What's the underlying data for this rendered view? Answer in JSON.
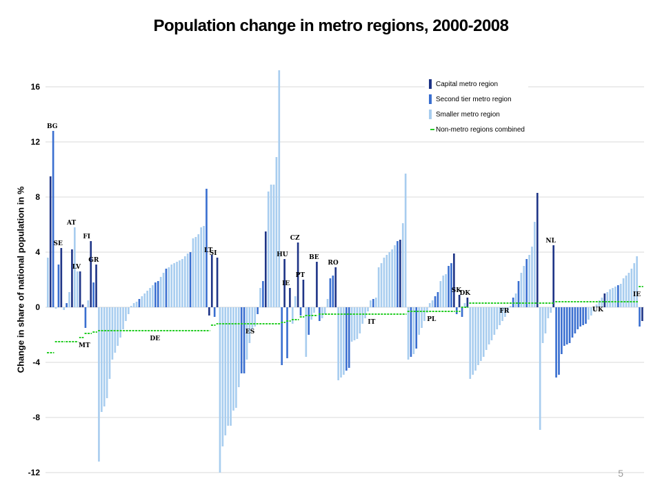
{
  "page": {
    "number": "5"
  },
  "chart_data": {
    "type": "bar",
    "title": "Population change in metro regions, 2000-2008",
    "ylabel": "Change in share of national population in %",
    "xlabel": "",
    "ylim": [
      -12,
      17
    ],
    "yticks": [
      -12,
      -8,
      -4,
      0,
      4,
      8,
      12,
      16
    ],
    "grid": true,
    "legend_position": "top-right",
    "colors": {
      "capital": "#1f3587",
      "second": "#3a6fd0",
      "smaller": "#a8cdef",
      "nonmetro": "#22cc22",
      "grid": "#d9d9d9"
    },
    "legend": [
      {
        "key": "capital",
        "label": "Capital metro region"
      },
      {
        "key": "second",
        "label": "Second tier metro region"
      },
      {
        "key": "smaller",
        "label": "Smaller metro region"
      },
      {
        "key": "nonmetro",
        "label": "Non-metro regions combined"
      }
    ],
    "countries": [
      {
        "code": "BG",
        "bars": [
          {
            "t": "s",
            "v": 3.6
          },
          {
            "t": "c",
            "v": 9.5
          },
          {
            "t": "b",
            "v": 12.8
          }
        ],
        "nonmetro": -3.3
      },
      {
        "code": "SE",
        "bars": [
          {
            "t": "s",
            "v": -0.1
          },
          {
            "t": "b",
            "v": 3.1
          },
          {
            "t": "c",
            "v": 4.3
          },
          {
            "t": "s",
            "v": -0.2
          }
        ],
        "nonmetro": -2.5
      },
      {
        "code": "AT",
        "bars": [
          {
            "t": "b",
            "v": 0.3
          },
          {
            "t": "s",
            "v": 1.1
          },
          {
            "t": "c",
            "v": 4.2
          },
          {
            "t": "s",
            "v": 5.8
          },
          {
            "t": "s",
            "v": 2.6
          }
        ],
        "nonmetro": -2.5
      },
      {
        "code": "LV",
        "bars": [
          {
            "t": "c",
            "v": 2.6
          }
        ],
        "nonmetro": -2.2
      },
      {
        "code": "MT",
        "bars": [
          {
            "t": "c",
            "v": 0.2
          }
        ],
        "nonmetro": -2.2
      },
      {
        "code": "FI",
        "bars": [
          {
            "t": "b",
            "v": -1.5
          },
          {
            "t": "s",
            "v": 0.5
          },
          {
            "t": "c",
            "v": 4.8
          }
        ],
        "nonmetro": -1.9
      },
      {
        "code": "GR",
        "bars": [
          {
            "t": "b",
            "v": 1.8
          },
          {
            "t": "c",
            "v": 3.1
          }
        ],
        "nonmetro": -1.8
      },
      {
        "code": "DE",
        "bars": [
          {
            "t": "s",
            "v": -11.2
          },
          {
            "t": "s",
            "v": -7.6
          },
          {
            "t": "s",
            "v": -7.2
          },
          {
            "t": "s",
            "v": -6.6
          },
          {
            "t": "s",
            "v": -5.2
          },
          {
            "t": "s",
            "v": -3.8
          },
          {
            "t": "s",
            "v": -3.3
          },
          {
            "t": "s",
            "v": -2.8
          },
          {
            "t": "s",
            "v": -2.2
          },
          {
            "t": "s",
            "v": -1.6
          },
          {
            "t": "s",
            "v": -1.0
          },
          {
            "t": "s",
            "v": -0.5
          },
          {
            "t": "s",
            "v": 0.1
          },
          {
            "t": "s",
            "v": 0.3
          },
          {
            "t": "s",
            "v": 0.4
          },
          {
            "t": "b",
            "v": 0.6
          },
          {
            "t": "s",
            "v": 0.8
          },
          {
            "t": "s",
            "v": 1.0
          },
          {
            "t": "s",
            "v": 1.2
          },
          {
            "t": "s",
            "v": 1.4
          },
          {
            "t": "s",
            "v": 1.6
          },
          {
            "t": "b",
            "v": 1.8
          },
          {
            "t": "b",
            "v": 1.9
          },
          {
            "t": "s",
            "v": 2.2
          },
          {
            "t": "s",
            "v": 2.5
          },
          {
            "t": "b",
            "v": 2.8
          },
          {
            "t": "s",
            "v": 2.9
          },
          {
            "t": "s",
            "v": 3.1
          },
          {
            "t": "s",
            "v": 3.2
          },
          {
            "t": "s",
            "v": 3.3
          },
          {
            "t": "s",
            "v": 3.4
          },
          {
            "t": "s",
            "v": 3.5
          },
          {
            "t": "s",
            "v": 3.7
          },
          {
            "t": "s",
            "v": 3.9
          },
          {
            "t": "b",
            "v": 4.0
          },
          {
            "t": "s",
            "v": 5.0
          },
          {
            "t": "s",
            "v": 5.1
          },
          {
            "t": "s",
            "v": 5.3
          },
          {
            "t": "s",
            "v": 5.8
          },
          {
            "t": "s",
            "v": 5.9
          },
          {
            "t": "b",
            "v": 8.6
          },
          {
            "t": "c",
            "v": -0.6
          }
        ],
        "nonmetro": -1.7
      },
      {
        "code": "LT",
        "bars": [
          {
            "t": "c",
            "v": 3.8
          },
          {
            "t": "b",
            "v": -0.7
          }
        ],
        "nonmetro": -1.3
      },
      {
        "code": "SI",
        "bars": [
          {
            "t": "c",
            "v": 3.6
          }
        ],
        "nonmetro": -1.2
      },
      {
        "code": "ES",
        "bars": [
          {
            "t": "s",
            "v": -12.0
          },
          {
            "t": "s",
            "v": -10.1
          },
          {
            "t": "s",
            "v": -9.3
          },
          {
            "t": "s",
            "v": -8.6
          },
          {
            "t": "s",
            "v": -8.6
          },
          {
            "t": "s",
            "v": -7.5
          },
          {
            "t": "s",
            "v": -7.3
          },
          {
            "t": "s",
            "v": -5.8
          },
          {
            "t": "b",
            "v": -4.8
          },
          {
            "t": "b",
            "v": -4.8
          },
          {
            "t": "s",
            "v": -3.8
          },
          {
            "t": "s",
            "v": -2.6
          },
          {
            "t": "s",
            "v": -1.6
          },
          {
            "t": "s",
            "v": -1.4
          },
          {
            "t": "b",
            "v": -0.5
          },
          {
            "t": "s",
            "v": 1.4
          },
          {
            "t": "b",
            "v": 1.9
          },
          {
            "t": "c",
            "v": 5.5
          },
          {
            "t": "s",
            "v": 8.4
          },
          {
            "t": "s",
            "v": 8.9
          },
          {
            "t": "s",
            "v": 8.9
          },
          {
            "t": "s",
            "v": 10.9
          },
          {
            "t": "s",
            "v": 17.2
          }
        ],
        "nonmetro": -1.2
      },
      {
        "code": "HU",
        "bars": [
          {
            "t": "b",
            "v": -4.2
          },
          {
            "t": "c",
            "v": 3.5
          }
        ],
        "nonmetro": -1.1
      },
      {
        "code": "IE",
        "bars": [
          {
            "t": "b",
            "v": -3.7
          },
          {
            "t": "c",
            "v": 1.4
          }
        ],
        "nonmetro": -1.0
      },
      {
        "code": "CZ",
        "bars": [
          {
            "t": "s",
            "v": -1.2
          },
          {
            "t": "s",
            "v": 0.8
          },
          {
            "t": "c",
            "v": 4.7
          }
        ],
        "nonmetro": -0.9
      },
      {
        "code": "PT",
        "bars": [
          {
            "t": "b",
            "v": -0.6
          },
          {
            "t": "c",
            "v": 2.0
          }
        ],
        "nonmetro": -0.7
      },
      {
        "code": "BE",
        "bars": [
          {
            "t": "s",
            "v": -3.6
          },
          {
            "t": "b",
            "v": -2.0
          },
          {
            "t": "s",
            "v": -0.9
          },
          {
            "t": "s",
            "v": -0.4
          },
          {
            "t": "c",
            "v": 3.3
          }
        ],
        "nonmetro": -0.6
      },
      {
        "code": "RO",
        "bars": [
          {
            "t": "b",
            "v": -1.0
          },
          {
            "t": "s",
            "v": -0.8
          },
          {
            "t": "s",
            "v": -0.5
          },
          {
            "t": "s",
            "v": 0.6
          },
          {
            "t": "b",
            "v": 2.1
          },
          {
            "t": "b",
            "v": 2.3
          },
          {
            "t": "c",
            "v": 2.9
          }
        ],
        "nonmetro": -0.5
      },
      {
        "code": "IT",
        "bars": [
          {
            "t": "s",
            "v": -5.3
          },
          {
            "t": "s",
            "v": -5.1
          },
          {
            "t": "s",
            "v": -4.9
          },
          {
            "t": "b",
            "v": -4.6
          },
          {
            "t": "b",
            "v": -4.4
          },
          {
            "t": "s",
            "v": -2.5
          },
          {
            "t": "s",
            "v": -2.4
          },
          {
            "t": "s",
            "v": -2.3
          },
          {
            "t": "s",
            "v": -1.9
          },
          {
            "t": "s",
            "v": -1.2
          },
          {
            "t": "s",
            "v": -0.8
          },
          {
            "t": "s",
            "v": -0.3
          },
          {
            "t": "s",
            "v": 0.5
          },
          {
            "t": "b",
            "v": 0.6
          },
          {
            "t": "s",
            "v": 0.7
          },
          {
            "t": "s",
            "v": 2.9
          },
          {
            "t": "s",
            "v": 3.2
          },
          {
            "t": "s",
            "v": 3.6
          },
          {
            "t": "s",
            "v": 3.8
          },
          {
            "t": "s",
            "v": 4.0
          },
          {
            "t": "s",
            "v": 4.2
          },
          {
            "t": "s",
            "v": 4.5
          },
          {
            "t": "b",
            "v": 4.8
          },
          {
            "t": "c",
            "v": 4.9
          },
          {
            "t": "s",
            "v": 6.1
          },
          {
            "t": "s",
            "v": 9.7
          }
        ],
        "nonmetro": -0.5
      },
      {
        "code": "PL",
        "bars": [
          {
            "t": "s",
            "v": -3.8
          },
          {
            "t": "b",
            "v": -3.6
          },
          {
            "t": "s",
            "v": -3.4
          },
          {
            "t": "b",
            "v": -3.0
          },
          {
            "t": "s",
            "v": -2.0
          },
          {
            "t": "s",
            "v": -1.5
          },
          {
            "t": "s",
            "v": -1.0
          },
          {
            "t": "s",
            "v": -0.4
          },
          {
            "t": "s",
            "v": 0.3
          },
          {
            "t": "s",
            "v": 0.5
          },
          {
            "t": "b",
            "v": 0.8
          },
          {
            "t": "b",
            "v": 1.1
          },
          {
            "t": "s",
            "v": 1.9
          },
          {
            "t": "s",
            "v": 2.3
          },
          {
            "t": "s",
            "v": 2.4
          },
          {
            "t": "b",
            "v": 3.0
          },
          {
            "t": "b",
            "v": 3.2
          },
          {
            "t": "c",
            "v": 3.9
          }
        ],
        "nonmetro": -0.3
      },
      {
        "code": "SK",
        "bars": [
          {
            "t": "b",
            "v": -0.5
          },
          {
            "t": "c",
            "v": 0.9
          }
        ],
        "nonmetro": -0.3
      },
      {
        "code": "DK",
        "bars": [
          {
            "t": "b",
            "v": -0.7
          },
          {
            "t": "s",
            "v": 0.3
          },
          {
            "t": "c",
            "v": 0.7
          }
        ],
        "nonmetro": 0.0
      },
      {
        "code": "FR",
        "bars": [
          {
            "t": "s",
            "v": -5.2
          },
          {
            "t": "s",
            "v": -4.9
          },
          {
            "t": "s",
            "v": -4.6
          },
          {
            "t": "s",
            "v": -4.2
          },
          {
            "t": "s",
            "v": -3.9
          },
          {
            "t": "s",
            "v": -3.6
          },
          {
            "t": "s",
            "v": -3.1
          },
          {
            "t": "s",
            "v": -2.7
          },
          {
            "t": "s",
            "v": -2.4
          },
          {
            "t": "s",
            "v": -2.0
          },
          {
            "t": "s",
            "v": -1.6
          },
          {
            "t": "s",
            "v": -1.3
          },
          {
            "t": "s",
            "v": -1.0
          },
          {
            "t": "s",
            "v": -0.7
          },
          {
            "t": "s",
            "v": -0.4
          },
          {
            "t": "s",
            "v": 0.1
          },
          {
            "t": "b",
            "v": 0.7
          },
          {
            "t": "s",
            "v": 1.0
          },
          {
            "t": "b",
            "v": 1.9
          },
          {
            "t": "s",
            "v": 2.5
          },
          {
            "t": "s",
            "v": 3.0
          },
          {
            "t": "b",
            "v": 3.5
          },
          {
            "t": "s",
            "v": 3.8
          },
          {
            "t": "s",
            "v": 4.4
          },
          {
            "t": "s",
            "v": 6.2
          },
          {
            "t": "c",
            "v": 8.3
          }
        ],
        "nonmetro": 0.3
      },
      {
        "code": "NL",
        "bars": [
          {
            "t": "s",
            "v": -8.9
          },
          {
            "t": "s",
            "v": -2.6
          },
          {
            "t": "s",
            "v": -1.9
          },
          {
            "t": "s",
            "v": -0.8
          },
          {
            "t": "s",
            "v": -0.4
          },
          {
            "t": "c",
            "v": 4.5
          }
        ],
        "nonmetro": 0.3
      },
      {
        "code": "UK",
        "bars": [
          {
            "t": "b",
            "v": -5.1
          },
          {
            "t": "b",
            "v": -4.9
          },
          {
            "t": "b",
            "v": -3.4
          },
          {
            "t": "b",
            "v": -2.8
          },
          {
            "t": "b",
            "v": -2.7
          },
          {
            "t": "b",
            "v": -2.6
          },
          {
            "t": "b",
            "v": -2.2
          },
          {
            "t": "b",
            "v": -1.9
          },
          {
            "t": "b",
            "v": -1.6
          },
          {
            "t": "b",
            "v": -1.4
          },
          {
            "t": "b",
            "v": -1.3
          },
          {
            "t": "b",
            "v": -1.2
          },
          {
            "t": "s",
            "v": -0.9
          },
          {
            "t": "s",
            "v": -0.6
          },
          {
            "t": "s",
            "v": -0.3
          },
          {
            "t": "s",
            "v": 0.2
          },
          {
            "t": "s",
            "v": 0.5
          },
          {
            "t": "s",
            "v": 0.7
          },
          {
            "t": "c",
            "v": 1.0
          },
          {
            "t": "s",
            "v": 1.1
          },
          {
            "t": "s",
            "v": 1.3
          },
          {
            "t": "s",
            "v": 1.4
          },
          {
            "t": "s",
            "v": 1.5
          },
          {
            "t": "b",
            "v": 1.6
          },
          {
            "t": "s",
            "v": 1.7
          },
          {
            "t": "s",
            "v": 2.1
          },
          {
            "t": "s",
            "v": 2.3
          },
          {
            "t": "s",
            "v": 2.5
          },
          {
            "t": "s",
            "v": 2.8
          },
          {
            "t": "s",
            "v": 3.2
          },
          {
            "t": "s",
            "v": 3.7
          }
        ],
        "nonmetro": 0.4
      },
      {
        "code": "IE",
        "bars": [
          {
            "t": "b",
            "v": -1.4
          },
          {
            "t": "c",
            "v": -1.0
          }
        ],
        "nonmetro": 1.5
      }
    ]
  }
}
